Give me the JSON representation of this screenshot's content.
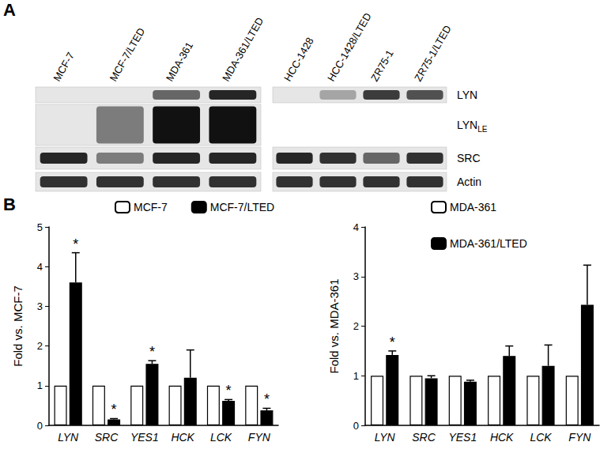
{
  "blot": {
    "panel_label": "A",
    "lanes": [
      [
        "MCF-7",
        "MCF-7/LTED",
        "MDA-361",
        "MDA-361/LTED"
      ],
      [
        "HCC-1428",
        "HCC-1428/LTED",
        "ZR75-1",
        "ZR75-1/LTED"
      ]
    ],
    "rows": [
      {
        "label": "LYN",
        "band_intensity": [
          0,
          0,
          0.6,
          0.9,
          0,
          0.3,
          0.8,
          0.7
        ]
      },
      {
        "label": "LYN",
        "subscript": "LE",
        "band_intensity": [
          0,
          0.5,
          1,
          1,
          null,
          null,
          null,
          null
        ]
      },
      {
        "label": "SRC",
        "band_intensity": [
          0.9,
          0.5,
          0.9,
          0.9,
          0.9,
          0.85,
          0.6,
          0.85
        ]
      },
      {
        "label": "Actin",
        "band_intensity": [
          0.85,
          0.85,
          0.85,
          0.85,
          0.85,
          0.85,
          0.85,
          0.85
        ]
      }
    ]
  },
  "chart_panel_label": "B",
  "chart_data": [
    {
      "type": "bar",
      "y_label": "Fold vs. MCF-7",
      "categories": [
        "LYN",
        "SRC",
        "YES1",
        "HCK",
        "LCK",
        "FYN"
      ],
      "series": [
        {
          "name": "MCF-7",
          "color": "#ffffff",
          "values": [
            1,
            1,
            1,
            1,
            1,
            1
          ]
        },
        {
          "name": "MCF-7/LTED",
          "color": "#000000",
          "values": [
            3.6,
            0.15,
            1.55,
            1.2,
            0.62,
            0.38
          ],
          "errors": [
            0.75,
            0.02,
            0.08,
            0.7,
            0.03,
            0.05
          ],
          "annotations": [
            "*",
            "*",
            "*",
            null,
            "*",
            "*"
          ]
        }
      ],
      "ylim": [
        0,
        5
      ],
      "yticks": [
        0,
        1,
        2,
        3,
        4,
        5
      ],
      "grid": false,
      "legend": "top"
    },
    {
      "type": "bar",
      "y_label": "Fold vs. MDA-361",
      "categories": [
        "LYN",
        "SRC",
        "YES1",
        "HCK",
        "LCK",
        "FYN"
      ],
      "series": [
        {
          "name": "MDA-361",
          "color": "#ffffff",
          "values": [
            1,
            1,
            1,
            1,
            1,
            1
          ]
        },
        {
          "name": "MDA-361/LTED",
          "color": "#000000",
          "values": [
            1.42,
            0.95,
            0.88,
            1.4,
            1.2,
            2.43
          ],
          "errors": [
            0.08,
            0.05,
            0.03,
            0.2,
            0.42,
            0.8
          ],
          "annotations": [
            "*",
            null,
            null,
            null,
            null,
            null
          ]
        }
      ],
      "ylim": [
        0,
        4
      ],
      "yticks": [
        0,
        1,
        2,
        3,
        4
      ],
      "grid": false,
      "legend": "top"
    }
  ]
}
